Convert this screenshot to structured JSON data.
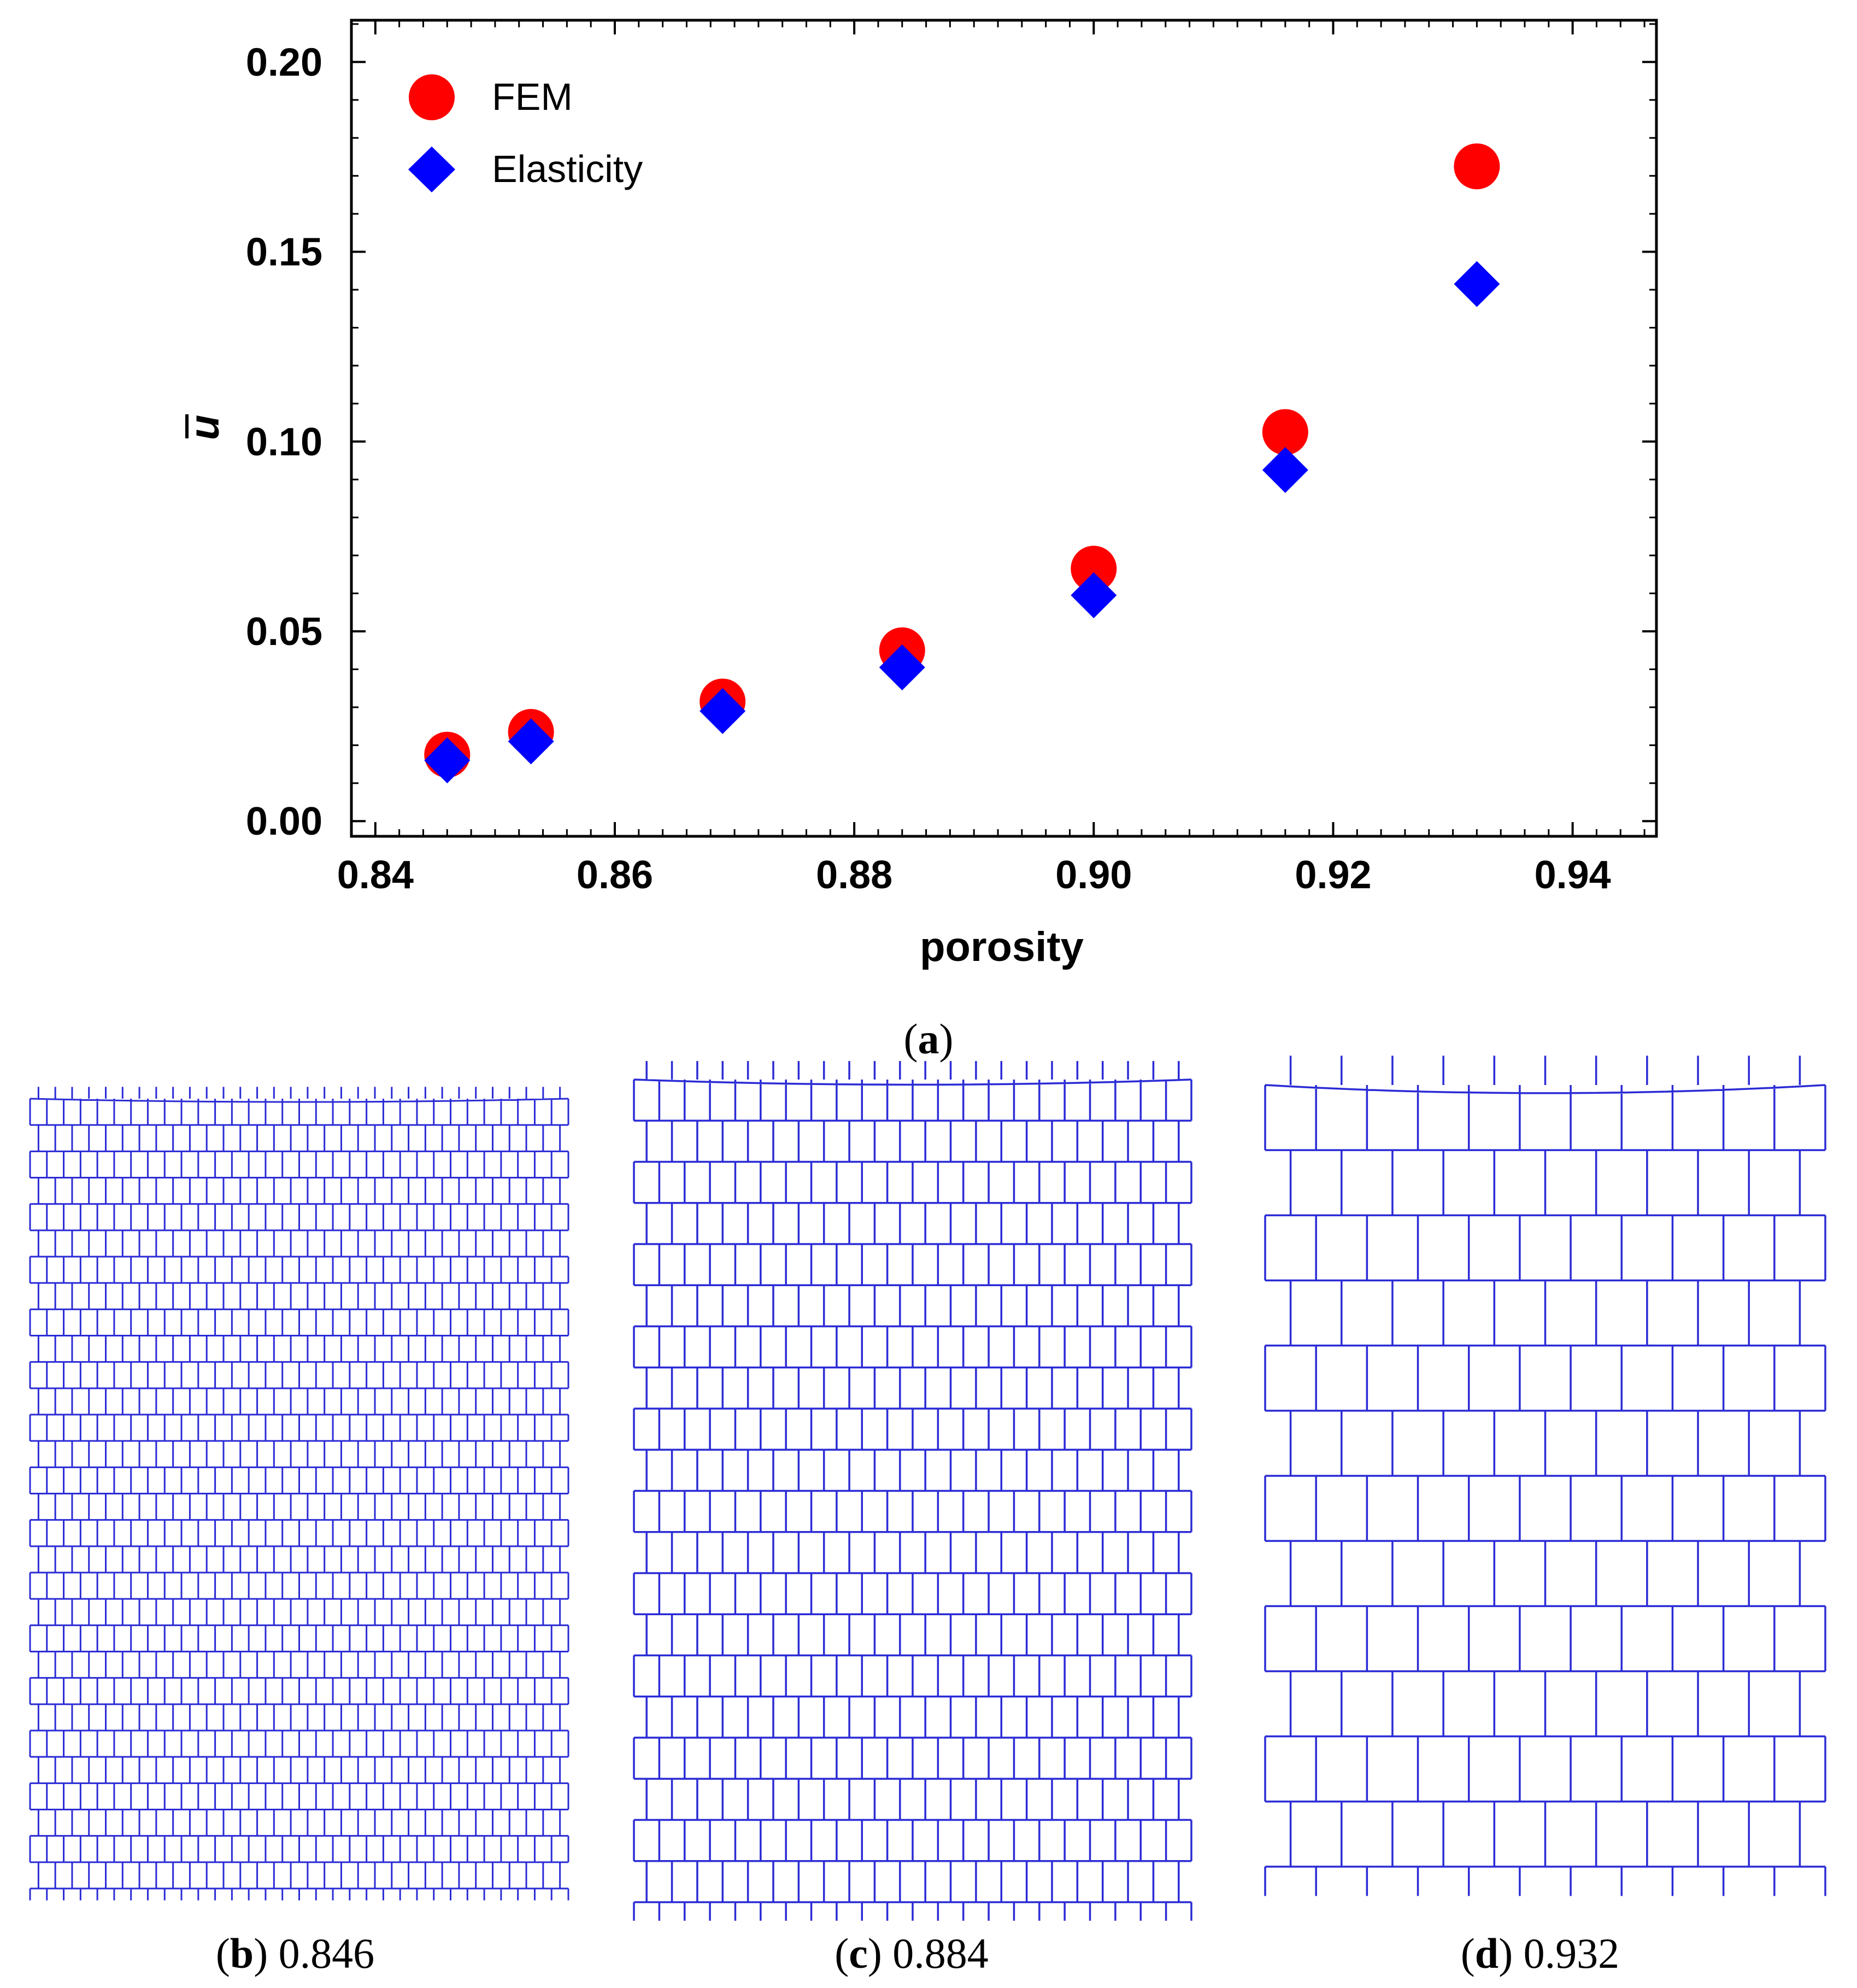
{
  "chart_data": {
    "type": "scatter",
    "title": "",
    "xlabel": "porosity",
    "ylabel": "u",
    "ylabel_overbar": true,
    "xlim": [
      0.838,
      0.947
    ],
    "ylim": [
      -0.004,
      0.211
    ],
    "xticks": [
      {
        "value": 0.84,
        "label": "0.84"
      },
      {
        "value": 0.86,
        "label": "0.86"
      },
      {
        "value": 0.88,
        "label": "0.88"
      },
      {
        "value": 0.9,
        "label": "0.90"
      },
      {
        "value": 0.92,
        "label": "0.92"
      },
      {
        "value": 0.94,
        "label": "0.94"
      }
    ],
    "yticks": [
      {
        "value": 0.0,
        "label": "0.00"
      },
      {
        "value": 0.05,
        "label": "0.05"
      },
      {
        "value": 0.1,
        "label": "0.10"
      },
      {
        "value": 0.15,
        "label": "0.15"
      },
      {
        "value": 0.2,
        "label": "0.20"
      }
    ],
    "grid": false,
    "legend_position": "top-left",
    "series": [
      {
        "name": "FEM",
        "marker": "circle",
        "color": "#ff0000",
        "x": [
          0.846,
          0.853,
          0.869,
          0.884,
          0.9,
          0.916,
          0.932
        ],
        "y": [
          0.0175,
          0.0235,
          0.0315,
          0.045,
          0.0665,
          0.1025,
          0.1725
        ]
      },
      {
        "name": "Elasticity",
        "marker": "diamond",
        "color": "#0000ff",
        "x": [
          0.846,
          0.853,
          0.869,
          0.884,
          0.9,
          0.916,
          0.932
        ],
        "y": [
          0.016,
          0.021,
          0.029,
          0.0405,
          0.0595,
          0.0925,
          0.1415
        ]
      }
    ]
  },
  "captions": {
    "a": {
      "letter": "a"
    },
    "b": {
      "letter": "b",
      "value": "0.846"
    },
    "c": {
      "letter": "c",
      "value": "0.884"
    },
    "d": {
      "letter": "d",
      "value": "0.932"
    }
  },
  "lattices": [
    {
      "id": "b",
      "porosity": 0.846,
      "columns": 32,
      "rows": 30
    },
    {
      "id": "c",
      "porosity": 0.884,
      "columns": 22,
      "rows": 20
    },
    {
      "id": "d",
      "porosity": 0.932,
      "columns": 11,
      "rows": 12
    }
  ],
  "colors": {
    "lattice": "#2b2bd6",
    "axis": "#000000"
  }
}
